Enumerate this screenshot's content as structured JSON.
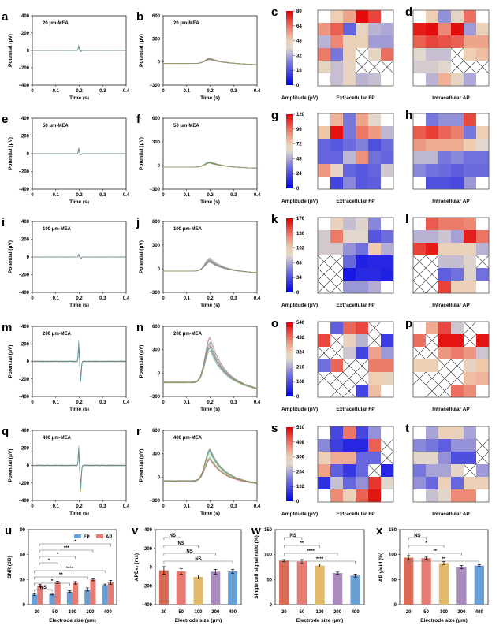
{
  "chart_data": [
    {
      "panel": "a",
      "type": "line",
      "annotation": "20 μm-MEA",
      "xlabel": "Time (s)",
      "ylabel": "Potential (μV)",
      "xlim": [
        0,
        0.4
      ],
      "ylim": [
        -400,
        400
      ],
      "xticks": [
        "0",
        "0.1",
        "0.2",
        "0.3",
        "0.4"
      ],
      "yticks": [
        "-400",
        "-200",
        "0",
        "200",
        "400"
      ],
      "peak": 60,
      "trough": -15,
      "kind": "extracellular"
    },
    {
      "panel": "b",
      "type": "line",
      "annotation": "20 μm-MEA",
      "xlabel": "Time (s)",
      "ylabel": "Potential (μV)",
      "xlim": [
        0,
        0.4
      ],
      "ylim": [
        -300,
        600
      ],
      "xticks": [
        "0",
        "0.1",
        "0.2",
        "0.3",
        "0.4"
      ],
      "yticks": [
        "-300",
        "0",
        "300",
        "600"
      ],
      "peak": 50,
      "base": -20,
      "kind": "intracellular"
    },
    {
      "panel": "e",
      "type": "line",
      "annotation": "50 μm-MEA",
      "xlabel": "Time (s)",
      "ylabel": "Potential (μV)",
      "xlim": [
        0,
        0.4
      ],
      "ylim": [
        -400,
        400
      ],
      "xticks": [
        "0",
        "0.1",
        "0.2",
        "0.3",
        "0.4"
      ],
      "yticks": [
        "-400",
        "-200",
        "0",
        "200",
        "400"
      ],
      "peak": 70,
      "trough": -15,
      "kind": "extracellular"
    },
    {
      "panel": "f",
      "type": "line",
      "annotation": "50 μm-MEA",
      "xlabel": "Time (s)",
      "ylabel": "Potential (μV)",
      "xlim": [
        0,
        0.4
      ],
      "ylim": [
        -300,
        600
      ],
      "xticks": [
        "0",
        "0.1",
        "0.2",
        "0.3",
        "0.4"
      ],
      "yticks": [
        "-300",
        "0",
        "300",
        "600"
      ],
      "peak": 50,
      "base": -20,
      "kind": "intracellular"
    },
    {
      "panel": "i",
      "type": "line",
      "annotation": "100 μm-MEA",
      "xlabel": "Time (s)",
      "ylabel": "Potential (μV)",
      "xlim": [
        0,
        0.4
      ],
      "ylim": [
        -400,
        400
      ],
      "xticks": [
        "0",
        "0.1",
        "0.2",
        "0.3",
        "0.4"
      ],
      "yticks": [
        "-400",
        "-200",
        "0",
        "200",
        "400"
      ],
      "peak": 35,
      "trough": -25,
      "kind": "extracellular"
    },
    {
      "panel": "j",
      "type": "line",
      "annotation": "100 μm-MEA",
      "xlabel": "Time (s)",
      "ylabel": "Potential (μV)",
      "xlim": [
        0,
        0.4
      ],
      "ylim": [
        -300,
        600
      ],
      "xticks": [
        "0",
        "0.1",
        "0.2",
        "0.3",
        "0.4"
      ],
      "yticks": [
        "-300",
        "0",
        "300",
        "600"
      ],
      "peak": 140,
      "base": -30,
      "kind": "intracellular"
    },
    {
      "panel": "m",
      "type": "line",
      "annotation": "200 μm-MEA",
      "xlabel": "Time (s)",
      "ylabel": "Potential (μV)",
      "xlim": [
        0,
        0.4
      ],
      "ylim": [
        -400,
        400
      ],
      "xticks": [
        "0",
        "0.1",
        "0.2",
        "0.3",
        "0.4"
      ],
      "yticks": [
        "-400",
        "-200",
        "0",
        "200",
        "400"
      ],
      "peak": 250,
      "trough": -240,
      "kind": "extracellular"
    },
    {
      "panel": "n",
      "type": "line",
      "annotation": "200 μm-MEA",
      "xlabel": "Time (s)",
      "ylabel": "Potential (μV)",
      "xlim": [
        0,
        0.4
      ],
      "ylim": [
        -300,
        600
      ],
      "xticks": [
        "0",
        "0.1",
        "0.2",
        "0.3",
        "0.4"
      ],
      "yticks": [
        "-300",
        "0",
        "300",
        "600"
      ],
      "peak": 460,
      "base": -120,
      "kind": "intracellular"
    },
    {
      "panel": "q",
      "type": "line",
      "annotation": "400 μm-MEA",
      "xlabel": "Time (s)",
      "ylabel": "Potential (μV)",
      "xlim": [
        0,
        0.4
      ],
      "ylim": [
        -400,
        400
      ],
      "xticks": [
        "0",
        "0.1",
        "0.2",
        "0.3",
        "0.4"
      ],
      "yticks": [
        "-400",
        "-200",
        "0",
        "200",
        "400"
      ],
      "peak": 250,
      "trough": -320,
      "kind": "extracellular"
    },
    {
      "panel": "r",
      "type": "line",
      "annotation": "400 μm-MEA",
      "xlabel": "Time (s)",
      "ylabel": "Potential (μV)",
      "xlim": [
        0,
        0.4
      ],
      "ylim": [
        -300,
        600
      ],
      "xticks": [
        "0",
        "0.1",
        "0.2",
        "0.3",
        "0.4"
      ],
      "yticks": [
        "-300",
        "0",
        "300",
        "600"
      ],
      "peak": 390,
      "base": -50,
      "kind": "intracellular"
    }
  ],
  "heatmaps": [
    {
      "panel_fp": "c",
      "panel_ap": "d",
      "colorbar_label": "Amplitude (μV)",
      "max": 80,
      "ticks": [
        "0",
        "16",
        "32",
        "48",
        "64",
        "80"
      ],
      "fp_title": "Extracellular FP",
      "ap_title": "Intracellular AP",
      "fp": [
        [
          null,
          48,
          56,
          78,
          70,
          null
        ],
        [
          58,
          66,
          20,
          44,
          34,
          32
        ],
        [
          34,
          60,
          46,
          46,
          30,
          30
        ],
        [
          62,
          24,
          46,
          "x",
          44,
          64
        ],
        [
          44,
          36,
          44,
          "x",
          "x",
          "x"
        ],
        [
          null,
          36,
          44,
          34,
          36,
          null
        ]
      ],
      "ap": [
        [
          null,
          48,
          28,
          42,
          64,
          null
        ],
        [
          76,
          78,
          60,
          78,
          30,
          46
        ],
        [
          66,
          70,
          68,
          66,
          56,
          56
        ],
        [
          40,
          36,
          36,
          "x",
          48,
          52
        ],
        [
          38,
          38,
          40,
          "x",
          "x",
          "x"
        ],
        [
          null,
          34,
          54,
          44,
          32,
          null
        ]
      ]
    },
    {
      "panel_fp": "g",
      "panel_ap": "h",
      "colorbar_label": "Amplitude (μV)",
      "max": 120,
      "ticks": [
        "0",
        "24",
        "48",
        "72",
        "96",
        "120"
      ],
      "fp_title": "Extracellular FP",
      "ap_title": "Intracellular AP",
      "fp": [
        [
          null,
          80,
          36,
          84,
          60,
          null
        ],
        [
          76,
          116,
          36,
          94,
          86,
          52
        ],
        [
          30,
          26,
          32,
          38,
          24,
          32
        ],
        [
          30,
          30,
          52,
          88,
          34,
          30
        ],
        [
          86,
          64,
          30,
          26,
          30,
          56
        ],
        [
          null,
          20,
          40,
          26,
          28,
          null
        ]
      ],
      "ap": [
        [
          null,
          36,
          42,
          42,
          104,
          null
        ],
        [
          100,
          106,
          98,
          92,
          36,
          72
        ],
        [
          86,
          82,
          82,
          82,
          74,
          60
        ],
        [
          52,
          52,
          36,
          40,
          34,
          34
        ],
        [
          40,
          34,
          32,
          28,
          32,
          32
        ],
        [
          null,
          24,
          24,
          22,
          44,
          null
        ]
      ]
    },
    {
      "panel_fp": "k",
      "panel_ap": "l",
      "colorbar_label": "Amplitude (μV)",
      "max": 170,
      "ticks": [
        "0",
        "34",
        "68",
        "102",
        "136",
        "170"
      ],
      "fp_title": "Extracellular FP",
      "ap_title": "Intracellular AP",
      "fp": [
        [
          null,
          96,
          76,
          84,
          56,
          null
        ],
        [
          80,
          132,
          86,
          86,
          36,
          46
        ],
        [
          80,
          80,
          60,
          48,
          106,
          70
        ],
        [
          "x",
          "x",
          44,
          14,
          16,
          16
        ],
        [
          "x",
          "x",
          10,
          18,
          18,
          14
        ],
        [
          "x",
          "x",
          62,
          62,
          70,
          null
        ]
      ],
      "ap": [
        [
          null,
          142,
          132,
          132,
          128,
          null
        ],
        [
          72,
          72,
          78,
          66,
          160,
          134
        ],
        [
          150,
          162,
          98,
          98,
          96,
          72
        ],
        [
          "x",
          "x",
          76,
          76,
          84,
          "x"
        ],
        [
          "x",
          "x",
          40,
          48,
          84,
          48
        ],
        [
          "x",
          "x",
          150,
          100,
          100,
          null
        ]
      ]
    },
    {
      "panel_fp": "o",
      "panel_ap": "p",
      "colorbar_label": "Amplitude (μV)",
      "max": 540,
      "ticks": [
        "0",
        "108",
        "216",
        "324",
        "432",
        "540"
      ],
      "fp_title": "Extracellular FP",
      "ap_title": "Intracellular AP",
      "fp": [
        [
          null,
          130,
          440,
          470,
          "x",
          null
        ],
        [
          470,
          "x",
          300,
          230,
          "x",
          80
        ],
        [
          "x",
          "x",
          250,
          90,
          380,
          200
        ],
        [
          150,
          440,
          "x",
          "x",
          420,
          420
        ],
        [
          "x",
          "x",
          "x",
          "x",
          330,
          310
        ],
        [
          null,
          "x",
          "x",
          90,
          350,
          null
        ]
      ],
      "ap": [
        [
          null,
          370,
          470,
          250,
          "x",
          null
        ],
        [
          430,
          "x",
          520,
          520,
          "x",
          520
        ],
        [
          "x",
          "x",
          390,
          420,
          390,
          250
        ],
        [
          320,
          320,
          "x",
          "x",
          300,
          340
        ],
        [
          "x",
          "x",
          "x",
          "x",
          350,
          360
        ],
        [
          null,
          "x",
          "x",
          430,
          400,
          null
        ]
      ]
    },
    {
      "panel_fp": "s",
      "panel_ap": "t",
      "colorbar_label": "Amplitude (μV)",
      "max": 510,
      "ticks": [
        "0",
        "102",
        "204",
        "306",
        "408",
        "510"
      ],
      "fp_title": "Extracellular FP",
      "ap_title": "Intracellular AP",
      "fp": [
        [
          null,
          90,
          400,
          90,
          180,
          null
        ],
        [
          170,
          80,
          50,
          50,
          420,
          "x"
        ],
        [
          300,
          350,
          350,
          130,
          130,
          "x"
        ],
        [
          360,
          120,
          70,
          130,
          "x",
          50
        ],
        [
          60,
          230,
          130,
          180,
          460,
          260
        ],
        [
          null,
          380,
          300,
          420,
          490,
          null
        ]
      ],
      "ap": [
        [
          null,
          200,
          300,
          290,
          200,
          null
        ],
        [
          170,
          150,
          120,
          180,
          180,
          "x"
        ],
        [
          260,
          260,
          180,
          100,
          100,
          "x"
        ],
        [
          150,
          200,
          200,
          270,
          "x",
          190
        ],
        [
          180,
          130,
          300,
          130,
          300,
          300
        ],
        [
          null,
          230,
          260,
          380,
          380,
          null
        ]
      ]
    }
  ],
  "bar_charts": [
    {
      "panel": "u",
      "type": "bar",
      "ylabel": "SNR (dB)",
      "xlabel": "Electrode size (μm)",
      "ylim": [
        0,
        90
      ],
      "yticks": [
        "0",
        "30",
        "60",
        "90"
      ],
      "categories": [
        "20",
        "50",
        "100",
        "200",
        "400"
      ],
      "legend": [
        "FP",
        "AP"
      ],
      "legend_position": "top-right",
      "series": [
        {
          "name": "FP",
          "values": [
            12,
            12.5,
            15.5,
            18,
            23.5
          ],
          "errors": [
            1,
            1,
            1,
            2,
            1
          ],
          "color": "#6a9fd6"
        },
        {
          "name": "AP",
          "values": [
            22.5,
            26.5,
            26,
            30,
            26.5
          ],
          "errors": [
            1.5,
            1.5,
            1.5,
            1.5,
            2.5
          ],
          "color": "#e57b73"
        }
      ],
      "brackets": [
        {
          "from": 0,
          "to": 4,
          "label": "*",
          "s1": "AP",
          "s2": "AP"
        },
        {
          "from": 0,
          "to": 3,
          "label": "***",
          "s1": "AP",
          "s2": "AP"
        },
        {
          "from": 0,
          "to": 2,
          "label": "*",
          "s1": "AP",
          "s2": "AP"
        },
        {
          "from": 0,
          "to": 1,
          "label": "*",
          "s1": "AP",
          "s2": "AP"
        },
        {
          "from": 0,
          "to": 4,
          "label": "****",
          "s1": "FP",
          "s2": "FP"
        },
        {
          "from": 0,
          "to": 3,
          "label": "**",
          "s1": "FP",
          "s2": "FP"
        },
        {
          "from": 0,
          "to": 2,
          "label": "*",
          "s1": "FP",
          "s2": "FP"
        },
        {
          "from": 0,
          "to": 1,
          "label": "NS",
          "s1": "FP",
          "s2": "FP"
        }
      ]
    },
    {
      "panel": "v",
      "type": "bar",
      "ylabel": "APD₅₀ (ms)",
      "xlabel": "Electrode size (μm)",
      "ylim": [
        -400,
        400
      ],
      "yticks": [
        "-400",
        "-200",
        "0",
        "200",
        "400"
      ],
      "categories": [
        "20",
        "50",
        "100",
        "200",
        "400"
      ],
      "values": [
        -35,
        -45,
        -105,
        -50,
        -45
      ],
      "errors": [
        40,
        30,
        20,
        25,
        20
      ],
      "colors": [
        "#d96a55",
        "#e57b73",
        "#e3b96b",
        "#a98bbd",
        "#6a9fd6"
      ],
      "brackets": [
        {
          "from": 0,
          "to": 4,
          "label": "NS"
        },
        {
          "from": 0,
          "to": 3,
          "label": "NS"
        },
        {
          "from": 0,
          "to": 2,
          "label": "NS"
        },
        {
          "from": 0,
          "to": 1,
          "label": "NS"
        }
      ]
    },
    {
      "panel": "w",
      "type": "bar",
      "ylabel": "Single cell signal ratio (%)",
      "xlabel": "Electrode size (μm)",
      "ylim": [
        0,
        150
      ],
      "yticks": [
        "0",
        "50",
        "100",
        "150"
      ],
      "categories": [
        "20",
        "50",
        "100",
        "200",
        "400"
      ],
      "values": [
        88,
        86,
        78,
        63,
        58
      ],
      "errors": [
        2,
        4,
        3,
        2,
        3
      ],
      "colors": [
        "#d96a55",
        "#e57b73",
        "#e3b96b",
        "#a98bbd",
        "#6a9fd6"
      ],
      "brackets": [
        {
          "from": 0,
          "to": 4,
          "label": "****"
        },
        {
          "from": 0,
          "to": 3,
          "label": "****"
        },
        {
          "from": 0,
          "to": 2,
          "label": "**"
        },
        {
          "from": 0,
          "to": 1,
          "label": "NS"
        }
      ]
    },
    {
      "panel": "x",
      "type": "bar",
      "ylabel": "AP yield (%)",
      "xlabel": "Electrode size (μm)",
      "ylim": [
        0,
        150
      ],
      "yticks": [
        "0",
        "50",
        "100",
        "150"
      ],
      "categories": [
        "20",
        "50",
        "100",
        "200",
        "400"
      ],
      "values": [
        94,
        93,
        83,
        75,
        78
      ],
      "errors": [
        4,
        2,
        3,
        3,
        2
      ],
      "colors": [
        "#d96a55",
        "#e57b73",
        "#e3b96b",
        "#a98bbd",
        "#6a9fd6"
      ],
      "brackets": [
        {
          "from": 0,
          "to": 4,
          "label": "**"
        },
        {
          "from": 0,
          "to": 3,
          "label": "**"
        },
        {
          "from": 0,
          "to": 2,
          "label": "*"
        },
        {
          "from": 0,
          "to": 1,
          "label": "NS"
        }
      ]
    }
  ]
}
